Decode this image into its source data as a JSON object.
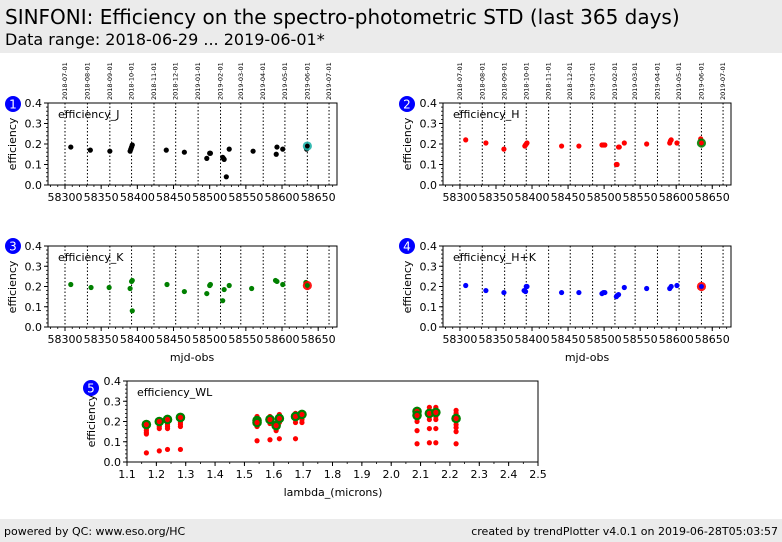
{
  "header": {
    "title": "SINFONI: Efficiency on the spectro-photometric STD (last 365 days)",
    "subtitle": "Data range: 2018-06-29 ... 2019-06-01*"
  },
  "footer": {
    "left": "powered by QC: www.eso.org/HC",
    "right": "created by trendPlotter v4.0.1 on 2019-06-28T05:03:57"
  },
  "colors": {
    "badge": "#0000ff",
    "black": "#000000",
    "red": "#ff0000",
    "green": "#008000",
    "blue": "#0000ff",
    "cyan": "#20b2aa",
    "header_bg": "#ebebeb"
  },
  "chart_data": [
    {
      "id": 1,
      "type": "scatter",
      "badge": "1",
      "label": "efficiency_J",
      "xlabel": "",
      "ylabel": "efficiency",
      "xlim": [
        58276.5,
        58676
      ],
      "ylim": [
        0.0,
        0.4
      ],
      "xticks": [
        58300,
        58350,
        58400,
        58450,
        58500,
        58550,
        58600,
        58650
      ],
      "yticks": [
        0.0,
        0.1,
        0.2,
        0.3,
        0.4
      ],
      "month_lines": [
        "2018-07-01",
        "2018-08-01",
        "2018-09-01",
        "2018-10-01",
        "2018-11-01",
        "2018-12-01",
        "2019-01-01",
        "2019-02-01",
        "2019-03-01",
        "2019-04-01",
        "2019-05-01",
        "2019-06-01",
        "2019-07-01"
      ],
      "month_mjd": [
        58300,
        58331,
        58362,
        58392,
        58423,
        58453,
        58484,
        58515,
        58543,
        58574,
        58604,
        58635,
        58665
      ],
      "show_month_labels": true,
      "point_color": "black",
      "points": [
        [
          58308,
          0.185
        ],
        [
          58335,
          0.17
        ],
        [
          58362,
          0.165
        ],
        [
          58390,
          0.165
        ],
        [
          58391,
          0.175
        ],
        [
          58392,
          0.185
        ],
        [
          58393,
          0.195
        ],
        [
          58440,
          0.17
        ],
        [
          58465,
          0.16
        ],
        [
          58496,
          0.13
        ],
        [
          58500,
          0.155
        ],
        [
          58501,
          0.155
        ],
        [
          58518,
          0.135
        ],
        [
          58519,
          0.13
        ],
        [
          58520,
          0.125
        ],
        [
          58523,
          0.04
        ],
        [
          58527,
          0.175
        ],
        [
          58560,
          0.165
        ],
        [
          58592,
          0.15
        ],
        [
          58593,
          0.185
        ],
        [
          58601,
          0.175
        ],
        [
          58634,
          0.175
        ],
        [
          58635,
          0.19
        ]
      ],
      "highlight": {
        "x": 58635,
        "y": 0.19,
        "color": "cyan"
      }
    },
    {
      "id": 2,
      "type": "scatter",
      "badge": "2",
      "label": "efficiency_H",
      "xlabel": "",
      "ylabel": "efficiency",
      "xlim": [
        58276.5,
        58676
      ],
      "ylim": [
        0.0,
        0.4
      ],
      "xticks": [
        58300,
        58350,
        58400,
        58450,
        58500,
        58550,
        58600,
        58650
      ],
      "yticks": [
        0.0,
        0.1,
        0.2,
        0.3,
        0.4
      ],
      "month_lines": [
        "2018-07-01",
        "2018-08-01",
        "2018-09-01",
        "2018-10-01",
        "2018-11-01",
        "2018-12-01",
        "2019-01-01",
        "2019-02-01",
        "2019-03-01",
        "2019-04-01",
        "2019-05-01",
        "2019-06-01",
        "2019-07-01"
      ],
      "month_mjd": [
        58300,
        58331,
        58362,
        58392,
        58423,
        58453,
        58484,
        58515,
        58543,
        58574,
        58604,
        58635,
        58665
      ],
      "show_month_labels": true,
      "point_color": "red",
      "points": [
        [
          58308,
          0.22
        ],
        [
          58336,
          0.205
        ],
        [
          58361,
          0.175
        ],
        [
          58390,
          0.19
        ],
        [
          58391,
          0.195
        ],
        [
          58392,
          0.2
        ],
        [
          58393,
          0.205
        ],
        [
          58441,
          0.19
        ],
        [
          58465,
          0.19
        ],
        [
          58497,
          0.195
        ],
        [
          58499,
          0.195
        ],
        [
          58501,
          0.195
        ],
        [
          58517,
          0.1
        ],
        [
          58518,
          0.1
        ],
        [
          58520,
          0.185
        ],
        [
          58521,
          0.185
        ],
        [
          58528,
          0.205
        ],
        [
          58559,
          0.2
        ],
        [
          58591,
          0.205
        ],
        [
          58592,
          0.215
        ],
        [
          58593,
          0.22
        ],
        [
          58601,
          0.205
        ],
        [
          58634,
          0.225
        ],
        [
          58635,
          0.205
        ]
      ],
      "highlight": {
        "x": 58635,
        "y": 0.205,
        "color": "green"
      }
    },
    {
      "id": 3,
      "type": "scatter",
      "badge": "3",
      "label": "efficiency_K",
      "xlabel": "mjd-obs",
      "ylabel": "efficiency",
      "xlim": [
        58276.5,
        58676
      ],
      "ylim": [
        0.0,
        0.4
      ],
      "xticks": [
        58300,
        58350,
        58400,
        58450,
        58500,
        58550,
        58600,
        58650
      ],
      "yticks": [
        0.0,
        0.1,
        0.2,
        0.3,
        0.4
      ],
      "month_mjd": [
        58300,
        58331,
        58362,
        58392,
        58423,
        58453,
        58484,
        58515,
        58543,
        58574,
        58604,
        58635,
        58665
      ],
      "show_month_labels": false,
      "point_color": "green",
      "points": [
        [
          58308,
          0.21
        ],
        [
          58336,
          0.195
        ],
        [
          58361,
          0.195
        ],
        [
          58390,
          0.19
        ],
        [
          58392,
          0.225
        ],
        [
          58393,
          0.23
        ],
        [
          58393,
          0.08
        ],
        [
          58441,
          0.21
        ],
        [
          58465,
          0.175
        ],
        [
          58496,
          0.165
        ],
        [
          58500,
          0.205
        ],
        [
          58501,
          0.21
        ],
        [
          58518,
          0.13
        ],
        [
          58520,
          0.185
        ],
        [
          58527,
          0.205
        ],
        [
          58558,
          0.19
        ],
        [
          58591,
          0.23
        ],
        [
          58593,
          0.225
        ],
        [
          58601,
          0.21
        ],
        [
          58633,
          0.22
        ],
        [
          58635,
          0.205
        ]
      ],
      "highlight": {
        "x": 58635,
        "y": 0.205,
        "color": "red"
      }
    },
    {
      "id": 4,
      "type": "scatter",
      "badge": "4",
      "label": "efficiency_H+K",
      "xlabel": "mjd-obs",
      "ylabel": "efficiency",
      "xlim": [
        58276.5,
        58676
      ],
      "ylim": [
        0.0,
        0.4
      ],
      "xticks": [
        58300,
        58350,
        58400,
        58450,
        58500,
        58550,
        58600,
        58650
      ],
      "yticks": [
        0.0,
        0.1,
        0.2,
        0.3,
        0.4
      ],
      "month_mjd": [
        58300,
        58331,
        58362,
        58392,
        58423,
        58453,
        58484,
        58515,
        58543,
        58574,
        58604,
        58635,
        58665
      ],
      "show_month_labels": false,
      "point_color": "blue",
      "points": [
        [
          58308,
          0.205
        ],
        [
          58336,
          0.18
        ],
        [
          58361,
          0.17
        ],
        [
          58389,
          0.18
        ],
        [
          58391,
          0.175
        ],
        [
          58392,
          0.2
        ],
        [
          58393,
          0.2
        ],
        [
          58441,
          0.17
        ],
        [
          58465,
          0.17
        ],
        [
          58497,
          0.165
        ],
        [
          58499,
          0.17
        ],
        [
          58501,
          0.17
        ],
        [
          58517,
          0.15
        ],
        [
          58518,
          0.155
        ],
        [
          58520,
          0.16
        ],
        [
          58528,
          0.195
        ],
        [
          58559,
          0.19
        ],
        [
          58591,
          0.19
        ],
        [
          58593,
          0.2
        ],
        [
          58601,
          0.205
        ],
        [
          58635,
          0.2
        ]
      ],
      "highlight": {
        "x": 58635,
        "y": 0.2,
        "color": "red"
      }
    },
    {
      "id": 5,
      "type": "scatter",
      "badge": "5",
      "label": "efficiency_WL",
      "xlabel": "lambda_(microns)",
      "ylabel": "efficiency",
      "xlim": [
        1.1,
        2.5
      ],
      "ylim": [
        0.0,
        0.4
      ],
      "xticks": [
        1.1,
        1.2,
        1.3,
        1.4,
        1.5,
        1.6,
        1.7,
        1.8,
        1.9,
        2.0,
        2.1,
        2.2,
        2.3,
        2.4,
        2.5
      ],
      "yticks": [
        0.0,
        0.1,
        0.2,
        0.3,
        0.4
      ],
      "point_color": "red",
      "points": [
        [
          1.166,
          0.185
        ],
        [
          1.166,
          0.175
        ],
        [
          1.166,
          0.165
        ],
        [
          1.166,
          0.155
        ],
        [
          1.166,
          0.145
        ],
        [
          1.166,
          0.138
        ],
        [
          1.166,
          0.045
        ],
        [
          1.21,
          0.2
        ],
        [
          1.21,
          0.185
        ],
        [
          1.21,
          0.175
        ],
        [
          1.21,
          0.165
        ],
        [
          1.21,
          0.055
        ],
        [
          1.238,
          0.21
        ],
        [
          1.238,
          0.195
        ],
        [
          1.238,
          0.185
        ],
        [
          1.238,
          0.175
        ],
        [
          1.238,
          0.165
        ],
        [
          1.238,
          0.062
        ],
        [
          1.282,
          0.22
        ],
        [
          1.282,
          0.205
        ],
        [
          1.282,
          0.195
        ],
        [
          1.282,
          0.185
        ],
        [
          1.282,
          0.175
        ],
        [
          1.282,
          0.062
        ],
        [
          1.543,
          0.225
        ],
        [
          1.543,
          0.21
        ],
        [
          1.543,
          0.2
        ],
        [
          1.543,
          0.185
        ],
        [
          1.543,
          0.175
        ],
        [
          1.543,
          0.105
        ],
        [
          1.587,
          0.225
        ],
        [
          1.587,
          0.21
        ],
        [
          1.587,
          0.2
        ],
        [
          1.587,
          0.19
        ],
        [
          1.587,
          0.11
        ],
        [
          1.608,
          0.19
        ],
        [
          1.608,
          0.175
        ],
        [
          1.608,
          0.165
        ],
        [
          1.608,
          0.155
        ],
        [
          1.619,
          0.235
        ],
        [
          1.619,
          0.22
        ],
        [
          1.619,
          0.21
        ],
        [
          1.619,
          0.195
        ],
        [
          1.619,
          0.115
        ],
        [
          1.674,
          0.24
        ],
        [
          1.674,
          0.225
        ],
        [
          1.674,
          0.21
        ],
        [
          1.674,
          0.195
        ],
        [
          1.674,
          0.115
        ],
        [
          1.696,
          0.24
        ],
        [
          1.696,
          0.225
        ],
        [
          1.696,
          0.21
        ],
        [
          1.696,
          0.195
        ],
        [
          2.088,
          0.26
        ],
        [
          2.088,
          0.245
        ],
        [
          2.088,
          0.23
        ],
        [
          2.088,
          0.215
        ],
        [
          2.088,
          0.2
        ],
        [
          2.088,
          0.155
        ],
        [
          2.088,
          0.09
        ],
        [
          2.13,
          0.27
        ],
        [
          2.13,
          0.255
        ],
        [
          2.13,
          0.24
        ],
        [
          2.13,
          0.225
        ],
        [
          2.13,
          0.21
        ],
        [
          2.13,
          0.165
        ],
        [
          2.13,
          0.095
        ],
        [
          2.152,
          0.27
        ],
        [
          2.152,
          0.255
        ],
        [
          2.152,
          0.24
        ],
        [
          2.152,
          0.225
        ],
        [
          2.152,
          0.21
        ],
        [
          2.152,
          0.165
        ],
        [
          2.152,
          0.095
        ],
        [
          2.221,
          0.255
        ],
        [
          2.221,
          0.24
        ],
        [
          2.221,
          0.225
        ],
        [
          2.221,
          0.205
        ],
        [
          2.221,
          0.185
        ],
        [
          2.221,
          0.17
        ],
        [
          2.221,
          0.15
        ],
        [
          2.221,
          0.09
        ]
      ],
      "highlights": [
        [
          1.166,
          0.185
        ],
        [
          1.21,
          0.2
        ],
        [
          1.238,
          0.21
        ],
        [
          1.282,
          0.22
        ],
        [
          1.543,
          0.205
        ],
        [
          1.543,
          0.195
        ],
        [
          1.587,
          0.21
        ],
        [
          1.608,
          0.18
        ],
        [
          1.619,
          0.215
        ],
        [
          1.674,
          0.225
        ],
        [
          1.696,
          0.235
        ],
        [
          2.088,
          0.25
        ],
        [
          2.088,
          0.23
        ],
        [
          2.13,
          0.24
        ],
        [
          2.152,
          0.245
        ],
        [
          2.221,
          0.215
        ]
      ],
      "highlight_color": "green"
    }
  ]
}
